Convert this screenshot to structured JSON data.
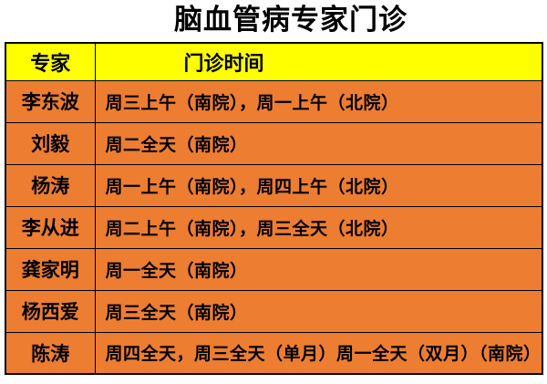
{
  "title": "脑血管病专家门诊",
  "colors": {
    "title_text": "#000000",
    "header_bg": "#ffff00",
    "row_bg": "#ed7d31",
    "border": "#000000",
    "page_bg": "#ffffff",
    "text": "#000000"
  },
  "table": {
    "headers": [
      "专家",
      "门诊时间"
    ],
    "rows": [
      {
        "name": "李东波",
        "time": "周三上午（南院），周一上午（北院）"
      },
      {
        "name": "刘毅",
        "time": "周二全天（南院）"
      },
      {
        "name": "杨涛",
        "time": "周一上午（南院），周四上午（北院）"
      },
      {
        "name": "李从进",
        "time": "周二上午（南院），周三全天（北院）"
      },
      {
        "name": "龚家明",
        "time": "周一全天（南院）"
      },
      {
        "name": "杨西爱",
        "time": "周三全天（南院）"
      },
      {
        "name": "陈涛",
        "time": "周四全天，周三全天（单月）周一全天（双月）（南院）"
      }
    ]
  },
  "chart_data": {
    "type": "table",
    "title": "脑血管病专家门诊",
    "columns": [
      "专家",
      "门诊时间"
    ],
    "cells": [
      [
        "李东波",
        "周三上午（南院），周一上午（北院）"
      ],
      [
        "刘毅",
        "周二全天（南院）"
      ],
      [
        "杨涛",
        "周一上午（南院），周四上午（北院）"
      ],
      [
        "李从进",
        "周二上午（南院），周三全天（北院）"
      ],
      [
        "龚家明",
        "周一全天（南院）"
      ],
      [
        "杨西爱",
        "周三全天（南院）"
      ],
      [
        "陈涛",
        "周四全天，周三全天（单月）周一全天（双月）（南院）"
      ]
    ]
  }
}
